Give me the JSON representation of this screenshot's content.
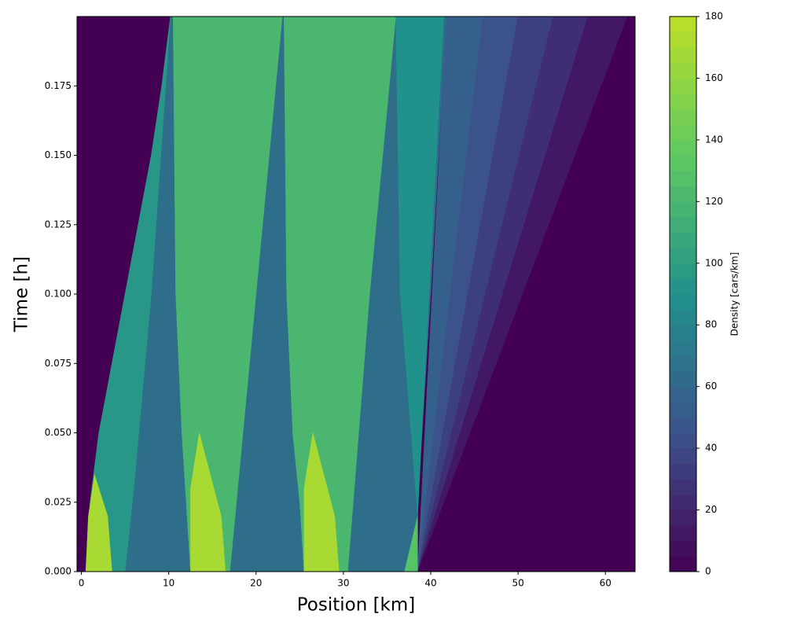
{
  "chart_data": {
    "type": "contour",
    "xlabel": "Position [km]",
    "ylabel": "Time [h]",
    "colorbar_label": "Density [cars/km]",
    "colormap": "viridis",
    "xlim": [
      -0.5,
      63.4
    ],
    "ylim": [
      0,
      0.2
    ],
    "xticks": [
      0,
      10,
      20,
      30,
      40,
      50,
      60
    ],
    "yticks": [
      {
        "value": 0,
        "label": "0.000"
      },
      {
        "value": 0.025,
        "label": "0.025"
      },
      {
        "value": 0.05,
        "label": "0.050"
      },
      {
        "value": 0.075,
        "label": "0.075"
      },
      {
        "value": 0.1,
        "label": "0.100"
      },
      {
        "value": 0.125,
        "label": "0.125"
      },
      {
        "value": 0.15,
        "label": "0.150"
      },
      {
        "value": 0.175,
        "label": "0.175"
      }
    ],
    "clim": [
      0,
      180
    ],
    "cticks": [
      0,
      20,
      40,
      60,
      80,
      100,
      120,
      140,
      160,
      180
    ],
    "regions": [
      {
        "value": 0,
        "x": [
          -0.5,
          63.4,
          63.4,
          -0.5
        ],
        "y": [
          0,
          0,
          0.2,
          0.2
        ]
      },
      {
        "value": 65,
        "x": [
          0.5,
          1,
          2,
          3.5,
          5,
          6.5,
          8,
          9.2,
          10.2,
          41.8,
          40,
          38.5,
          38.5
        ],
        "y": [
          0,
          0.025,
          0.05,
          0.075,
          0.1,
          0.125,
          0.15,
          0.175,
          0.2,
          0.2,
          0.1,
          0.025,
          0
        ]
      },
      {
        "value": 55,
        "x": [
          38.5,
          41.8,
          46
        ],
        "y": [
          0,
          0.2,
          0.2
        ]
      },
      {
        "value": 45,
        "x": [
          38.5,
          46,
          50
        ],
        "y": [
          0,
          0.2,
          0.2
        ]
      },
      {
        "value": 35,
        "x": [
          38.5,
          50,
          54
        ],
        "y": [
          0,
          0.2,
          0.2
        ]
      },
      {
        "value": 25,
        "x": [
          38.5,
          54,
          58
        ],
        "y": [
          0,
          0.2,
          0.2
        ]
      },
      {
        "value": 12,
        "x": [
          38.5,
          58,
          62.5
        ],
        "y": [
          0,
          0.2,
          0.2
        ]
      },
      {
        "value": 95,
        "x": [
          0.5,
          1,
          2,
          3.5,
          5,
          6.5,
          8,
          9.2,
          10.2,
          8,
          6,
          5
        ],
        "y": [
          0,
          0.025,
          0.05,
          0.075,
          0.1,
          0.125,
          0.15,
          0.175,
          0.2,
          0.1,
          0.03,
          0
        ]
      },
      {
        "value": 170,
        "x": [
          0.5,
          0.8,
          1.5,
          3,
          3.5
        ],
        "y": [
          0,
          0.02,
          0.035,
          0.02,
          0
        ]
      },
      {
        "value": 120,
        "x": [
          10.5,
          23,
          20,
          17,
          12.5,
          12,
          11.5,
          10.8
        ],
        "y": [
          0.2,
          0.2,
          0.1,
          0,
          0,
          0.025,
          0.05,
          0.1
        ]
      },
      {
        "value": 170,
        "x": [
          12.5,
          12.5,
          13.5,
          16,
          16.5
        ],
        "y": [
          0,
          0.03,
          0.05,
          0.02,
          0
        ]
      },
      {
        "value": 120,
        "x": [
          23.2,
          36,
          33,
          30.5,
          25.5,
          25,
          24.2,
          23.5
        ],
        "y": [
          0.2,
          0.2,
          0.1,
          0,
          0,
          0.025,
          0.05,
          0.1
        ]
      },
      {
        "value": 90,
        "x": [
          36,
          41.5,
          39.8,
          38.5,
          36.5
        ],
        "y": [
          0.2,
          0.2,
          0.1,
          0.02,
          0.1
        ]
      },
      {
        "value": 130,
        "x": [
          37,
          38.5,
          38.5
        ],
        "y": [
          0,
          0,
          0.02
        ]
      },
      {
        "value": 170,
        "x": [
          25.5,
          25.5,
          26.5,
          29,
          29.5
        ],
        "y": [
          0,
          0.03,
          0.05,
          0.02,
          0
        ]
      }
    ]
  }
}
